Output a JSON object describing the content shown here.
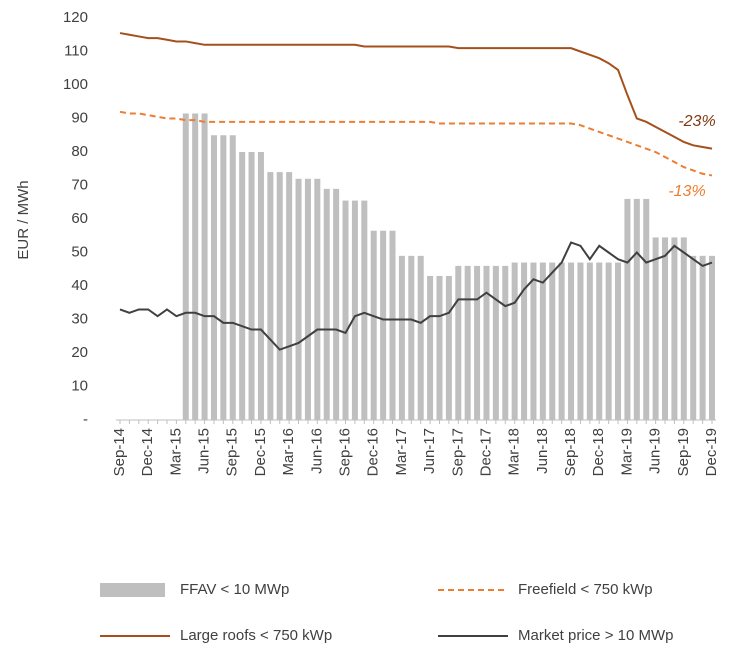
{
  "chart_data": {
    "type": "bar",
    "y_axis_label": "EUR / MWh",
    "categories": [
      "Sep-14",
      null,
      null,
      "Dec-14",
      null,
      null,
      "Mar-15",
      null,
      null,
      "Jun-15",
      null,
      null,
      "Sep-15",
      null,
      null,
      "Dec-15",
      null,
      null,
      "Mar-16",
      null,
      null,
      "Jun-16",
      null,
      null,
      "Sep-16",
      null,
      null,
      "Dec-16",
      null,
      null,
      "Mar-17",
      null,
      null,
      "Jun-17",
      null,
      null,
      "Sep-17",
      null,
      null,
      "Dec-17",
      null,
      null,
      "Mar-18",
      null,
      null,
      "Jun-18",
      null,
      null,
      "Sep-18",
      null,
      null,
      "Dec-18",
      null,
      null,
      "Mar-19",
      null,
      null,
      "Jun-19",
      null,
      null,
      "Sep-19",
      null,
      null,
      "Dec-19"
    ],
    "ylim": [
      0,
      120
    ],
    "yticks": [
      {
        "value": 0,
        "label": "-"
      },
      10,
      20,
      30,
      40,
      50,
      60,
      70,
      80,
      90,
      100,
      110,
      120
    ],
    "series": [
      {
        "name": "FFAV < 10 MWp",
        "type": "bar",
        "color": "#bfbfbf",
        "values": [
          null,
          null,
          null,
          null,
          null,
          null,
          null,
          91.5,
          91.5,
          91.5,
          85,
          85,
          85,
          80,
          80,
          80,
          74,
          74,
          74,
          72,
          72,
          72,
          69,
          69,
          65.5,
          65.5,
          65.5,
          56.5,
          56.5,
          56.5,
          49,
          49,
          49,
          43,
          43,
          43,
          46,
          46,
          46,
          46,
          46,
          46,
          47,
          47,
          47,
          47,
          47,
          47,
          47,
          47,
          47,
          47,
          47,
          47,
          66,
          66,
          66,
          54.5,
          54.5,
          54.5,
          54.5,
          49,
          49,
          49
        ]
      },
      {
        "name": "Freefield < 750 kWp",
        "type": "line",
        "color": "#ed7d31",
        "dashed": true,
        "values": [
          92,
          91.5,
          91.5,
          91,
          90.5,
          90,
          90,
          89.5,
          89.5,
          89,
          89,
          89,
          89,
          89,
          89,
          89,
          89,
          89,
          89,
          89,
          89,
          89,
          89,
          89,
          89,
          89,
          89,
          89,
          89,
          89,
          89,
          89,
          89,
          89,
          88.5,
          88.5,
          88.5,
          88.5,
          88.5,
          88.5,
          88.5,
          88.5,
          88.5,
          88.5,
          88.5,
          88.5,
          88.5,
          88.5,
          88.5,
          88,
          87,
          86,
          85,
          84,
          83,
          82,
          81,
          80,
          78.5,
          77,
          75.5,
          74.5,
          73.5,
          73
        ]
      },
      {
        "name": "Large roofs < 750 kWp",
        "type": "line",
        "color": "#a5501c",
        "dashed": false,
        "values": [
          115.5,
          115,
          114.5,
          114,
          114,
          113.5,
          113,
          113,
          112.5,
          112,
          112,
          112,
          112,
          112,
          112,
          112,
          112,
          112,
          112,
          112,
          112,
          112,
          112,
          112,
          112,
          112,
          111.5,
          111.5,
          111.5,
          111.5,
          111.5,
          111.5,
          111.5,
          111.5,
          111.5,
          111.5,
          111,
          111,
          111,
          111,
          111,
          111,
          111,
          111,
          111,
          111,
          111,
          111,
          111,
          110,
          109,
          108,
          106.5,
          104.5,
          97,
          90,
          89,
          87.5,
          86,
          84.5,
          83,
          82,
          81.5,
          81
        ]
      },
      {
        "name": "Market price > 10 MWp",
        "type": "line",
        "color": "#404040",
        "dashed": false,
        "values": [
          33,
          32,
          33,
          33,
          31,
          33,
          31,
          32,
          32,
          31,
          31,
          29,
          29,
          28,
          27,
          27,
          24,
          21,
          22,
          23,
          25,
          27,
          27,
          27,
          26,
          31,
          32,
          31,
          30,
          30,
          30,
          30,
          29,
          31,
          31,
          32,
          36,
          36,
          36,
          38,
          36,
          34,
          35,
          39,
          42,
          41,
          44,
          47,
          53,
          52,
          48,
          52,
          50,
          48,
          47,
          50,
          47,
          48,
          49,
          52,
          50,
          48,
          46,
          47
        ]
      }
    ],
    "annotations": [
      {
        "text": "-23%",
        "color": "#7f3a10"
      },
      {
        "text": "-13%",
        "color": "#ed7d31"
      }
    ]
  }
}
